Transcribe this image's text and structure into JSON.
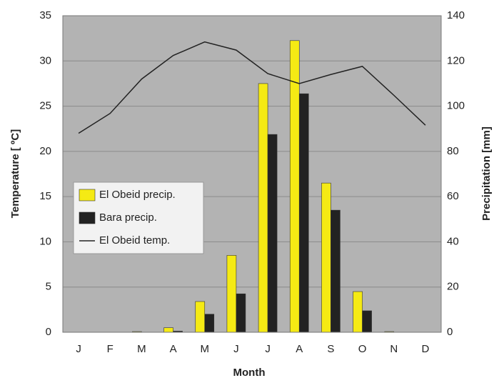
{
  "chart_data": {
    "type": "bar",
    "x_label": "Month",
    "y_label": "Temperature [  ºC]",
    "y2_label": "Precipitation [mm]",
    "categories": [
      "J",
      "F",
      "M",
      "A",
      "M",
      "J",
      "J",
      "A",
      "S",
      "O",
      "N",
      "D"
    ],
    "series": [
      {
        "name": "El Obeid precip.",
        "type": "bar",
        "axis": "y2",
        "color": "#f5ea14",
        "values": [
          0,
          0,
          0.3,
          2,
          13.6,
          34,
          110,
          129,
          66,
          18,
          0.3,
          0
        ]
      },
      {
        "name": "Bara precip.",
        "type": "bar",
        "axis": "y2",
        "color": "#222222",
        "values": [
          0,
          0,
          0,
          0.5,
          8,
          17,
          87.5,
          105.5,
          54,
          9.5,
          0,
          0
        ]
      },
      {
        "name": "El Obeid  temp.",
        "type": "line",
        "axis": "y",
        "color": "#222222",
        "values": [
          22.0,
          24.2,
          28.0,
          30.6,
          32.1,
          31.2,
          28.6,
          27.5,
          28.5,
          29.4,
          26.2,
          22.9
        ]
      }
    ],
    "ylim": [
      0,
      35
    ],
    "yticks": [
      0,
      5,
      10,
      15,
      20,
      25,
      30,
      35
    ],
    "y2lim": [
      0,
      140
    ],
    "y2ticks": [
      0,
      20,
      40,
      60,
      80,
      100,
      120,
      140
    ],
    "grid": true,
    "legend": "left"
  }
}
